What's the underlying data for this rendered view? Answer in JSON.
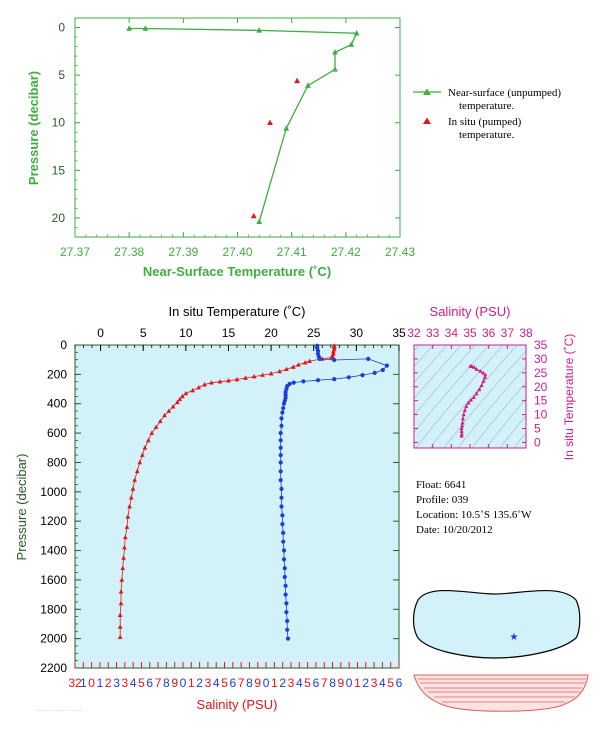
{
  "colors": {
    "green": "#3fae3f",
    "dark_green": "#2b5a2b",
    "temp_red": "#e0161a",
    "salinity_blue": "#1a3fd6",
    "magenta": "#d11e8a",
    "panel_bg": "#d3f1f8"
  },
  "chart_data": [
    {
      "type": "line",
      "id": "near-surface",
      "xlabel": "Near-Surface Temperature (˚C)",
      "ylabel": "Pressure (decibar)",
      "xlim": [
        27.37,
        27.43
      ],
      "ylim": [
        22,
        -1
      ],
      "xticks": [
        "27.37",
        "27.38",
        "27.39",
        "27.40",
        "27.41",
        "27.42",
        "27.43"
      ],
      "yticks": [
        "0",
        "5",
        "10",
        "15",
        "20"
      ],
      "series": [
        {
          "name": "Near-surface (unpumped) temperature.",
          "marker": "triangle",
          "color": "#3fae3f",
          "points": [
            [
              27.38,
              0.1
            ],
            [
              27.383,
              0.1
            ],
            [
              27.404,
              0.3
            ],
            [
              27.422,
              0.6
            ],
            [
              27.421,
              1.8
            ],
            [
              27.418,
              2.6
            ],
            [
              27.418,
              4.4
            ],
            [
              27.413,
              6.1
            ],
            [
              27.409,
              10.6
            ],
            [
              27.404,
              20.4
            ]
          ]
        },
        {
          "name": "In situ (pumped) temperature.",
          "marker": "triangle",
          "color": "#e0161a",
          "line": false,
          "points": [
            [
              27.411,
              5.6
            ],
            [
              27.406,
              10.0
            ],
            [
              27.403,
              19.8
            ]
          ]
        }
      ],
      "legend_position": "right"
    },
    {
      "type": "scatter",
      "id": "profile",
      "ylabel": "Pressure (decibar)",
      "xlabel_top": "In situ Temperature (˚C)",
      "xlabel_bottom": "Salinity (PSU)",
      "ylim": [
        2200,
        0
      ],
      "yticks": [
        "0",
        "200",
        "400",
        "600",
        "800",
        "1000",
        "1200",
        "1400",
        "1600",
        "1800",
        "2000",
        "2200"
      ],
      "temp_xlim": [
        -3,
        35
      ],
      "temp_ticks": [
        "0",
        "5",
        "10",
        "15",
        "20",
        "25",
        "30",
        "35"
      ],
      "sal_xlim": [
        32,
        36
      ],
      "sal_ticks": [
        "32",
        "1",
        "0",
        "1",
        "2",
        "3",
        "3",
        "4",
        "5",
        "6",
        "7",
        "8",
        "9",
        "0",
        "1",
        "2",
        "3",
        "4",
        "5",
        "6",
        "7",
        "8",
        "9",
        "0",
        "1",
        "2",
        "3",
        "4",
        "5",
        "6",
        "7",
        "8",
        "9",
        "0",
        "1",
        "2",
        "3",
        "4",
        "5",
        "6"
      ],
      "temperature": [
        [
          27.4,
          5
        ],
        [
          27.4,
          15
        ],
        [
          27.4,
          30
        ],
        [
          27.3,
          45
        ],
        [
          27.3,
          60
        ],
        [
          27.2,
          75
        ],
        [
          27.1,
          85
        ],
        [
          26.0,
          95
        ],
        [
          24.5,
          110
        ],
        [
          24.0,
          120
        ],
        [
          23.2,
          135
        ],
        [
          22.6,
          150
        ],
        [
          21.8,
          165
        ],
        [
          21.0,
          180
        ],
        [
          20.0,
          195
        ],
        [
          19.0,
          205
        ],
        [
          18.0,
          215
        ],
        [
          17.0,
          225
        ],
        [
          16.0,
          235
        ],
        [
          15.0,
          243
        ],
        [
          14.0,
          250
        ],
        [
          13.0,
          257
        ],
        [
          12.2,
          270
        ],
        [
          11.5,
          290
        ],
        [
          10.8,
          310
        ],
        [
          10.0,
          330
        ],
        [
          9.6,
          350
        ],
        [
          9.3,
          370
        ],
        [
          9.0,
          390
        ],
        [
          8.5,
          420
        ],
        [
          8.0,
          450
        ],
        [
          7.5,
          480
        ],
        [
          7.0,
          520
        ],
        [
          6.5,
          560
        ],
        [
          6.0,
          600
        ],
        [
          5.6,
          650
        ],
        [
          5.2,
          700
        ],
        [
          4.9,
          750
        ],
        [
          4.6,
          800
        ],
        [
          4.3,
          860
        ],
        [
          4.0,
          920
        ],
        [
          3.8,
          980
        ],
        [
          3.6,
          1040
        ],
        [
          3.4,
          1100
        ],
        [
          3.2,
          1170
        ],
        [
          3.1,
          1240
        ],
        [
          2.9,
          1310
        ],
        [
          2.8,
          1380
        ],
        [
          2.7,
          1450
        ],
        [
          2.6,
          1520
        ],
        [
          2.5,
          1600
        ],
        [
          2.4,
          1680
        ],
        [
          2.4,
          1760
        ],
        [
          2.3,
          1840
        ],
        [
          2.3,
          1920
        ],
        [
          2.3,
          1990
        ]
      ],
      "salinity": [
        [
          34.99,
          5
        ],
        [
          34.99,
          20
        ],
        [
          35.0,
          40
        ],
        [
          35.0,
          60
        ],
        [
          35.01,
          80
        ],
        [
          35.02,
          95
        ],
        [
          35.2,
          102
        ],
        [
          35.62,
          95
        ],
        [
          35.85,
          140
        ],
        [
          35.8,
          170
        ],
        [
          35.7,
          190
        ],
        [
          35.55,
          205
        ],
        [
          35.38,
          220
        ],
        [
          35.2,
          232
        ],
        [
          35.0,
          240
        ],
        [
          34.82,
          248
        ],
        [
          34.7,
          256
        ],
        [
          34.65,
          265
        ],
        [
          34.62,
          280
        ],
        [
          34.61,
          300
        ],
        [
          34.6,
          320
        ],
        [
          34.6,
          340
        ],
        [
          34.6,
          360
        ],
        [
          34.59,
          380
        ],
        [
          34.58,
          400
        ],
        [
          34.57,
          430
        ],
        [
          34.56,
          460
        ],
        [
          34.55,
          500
        ],
        [
          34.55,
          550
        ],
        [
          34.54,
          600
        ],
        [
          34.54,
          650
        ],
        [
          34.54,
          700
        ],
        [
          34.54,
          750
        ],
        [
          34.54,
          800
        ],
        [
          34.54,
          860
        ],
        [
          34.54,
          920
        ],
        [
          34.55,
          980
        ],
        [
          34.55,
          1040
        ],
        [
          34.55,
          1100
        ],
        [
          34.56,
          1160
        ],
        [
          34.56,
          1220
        ],
        [
          34.57,
          1280
        ],
        [
          34.57,
          1340
        ],
        [
          34.58,
          1400
        ],
        [
          34.58,
          1460
        ],
        [
          34.59,
          1520
        ],
        [
          34.59,
          1580
        ],
        [
          34.6,
          1640
        ],
        [
          34.6,
          1700
        ],
        [
          34.61,
          1760
        ],
        [
          34.61,
          1820
        ],
        [
          34.62,
          1880
        ],
        [
          34.62,
          1940
        ],
        [
          34.63,
          2000
        ]
      ]
    },
    {
      "type": "scatter",
      "id": "ts-diagram",
      "xlabel": "Salinity (PSU)",
      "ylabel": "In situ Temperature (˚C)",
      "xlim": [
        32,
        38
      ],
      "ylim": [
        -2,
        35
      ],
      "xticks": [
        "32",
        "33",
        "34",
        "35",
        "36",
        "37",
        "38"
      ],
      "yticks": [
        "0",
        "5",
        "10",
        "15",
        "20",
        "25",
        "30",
        "35"
      ],
      "points": [
        [
          34.55,
          2.3
        ],
        [
          34.56,
          3.0
        ],
        [
          34.55,
          4.0
        ],
        [
          34.55,
          5.0
        ],
        [
          34.58,
          6.0
        ],
        [
          34.6,
          7.0
        ],
        [
          34.62,
          8.5
        ],
        [
          34.66,
          10.0
        ],
        [
          34.72,
          11.5
        ],
        [
          34.8,
          13.0
        ],
        [
          34.92,
          14.2
        ],
        [
          35.05,
          15.2
        ],
        [
          35.2,
          16.2
        ],
        [
          35.35,
          17.5
        ],
        [
          35.5,
          19.0
        ],
        [
          35.62,
          20.5
        ],
        [
          35.72,
          22.0
        ],
        [
          35.8,
          23.3
        ],
        [
          35.82,
          24.3
        ],
        [
          35.7,
          25.0
        ],
        [
          35.55,
          25.6
        ],
        [
          35.35,
          26.3
        ],
        [
          35.22,
          27.0
        ],
        [
          35.1,
          27.3
        ],
        [
          35.02,
          27.4
        ]
      ]
    }
  ],
  "info": {
    "float": "Float:  6641",
    "profile": "Profile:  039",
    "location": "Location:  10.5˚S  135.6˚W",
    "date": "Date:  10/20/2012"
  },
  "map": {
    "marker_symbol": "★"
  }
}
